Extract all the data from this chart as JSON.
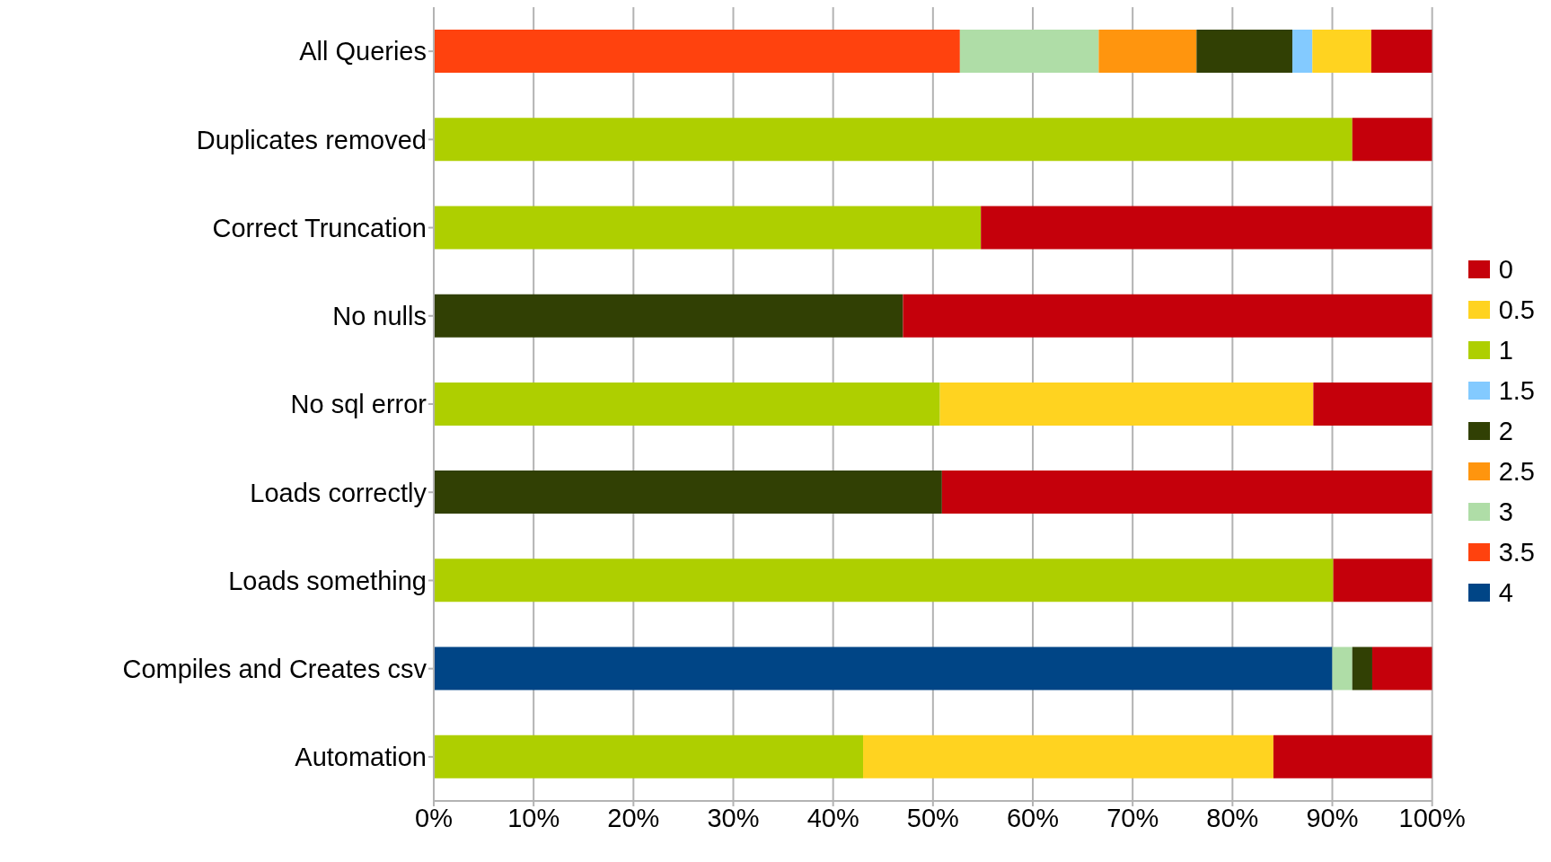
{
  "chart_data": {
    "type": "bar",
    "orientation": "horizontal",
    "stacked": true,
    "grid": "x",
    "legend": "right",
    "categories": [
      "All Queries",
      "Duplicates removed",
      "Correct Truncation",
      "No nulls",
      "No sql error",
      "Loads correctly",
      "Loads something",
      "Compiles and Creates csv",
      "Automation"
    ],
    "xlim": [
      0,
      100
    ],
    "xticks": [
      {
        "value": 0,
        "label": "0%"
      },
      {
        "value": 10,
        "label": "10%"
      },
      {
        "value": 20,
        "label": "20%"
      },
      {
        "value": 30,
        "label": "30%"
      },
      {
        "value": 40,
        "label": "40%"
      },
      {
        "value": 50,
        "label": "50%"
      },
      {
        "value": 60,
        "label": "60%"
      },
      {
        "value": 70,
        "label": "70%"
      },
      {
        "value": 80,
        "label": "80%"
      },
      {
        "value": 90,
        "label": "90%"
      },
      {
        "value": 100,
        "label": "100%"
      }
    ],
    "series": [
      {
        "name": "4",
        "color": "#004586",
        "values": [
          null,
          null,
          null,
          null,
          null,
          null,
          null,
          90.0,
          null
        ]
      },
      {
        "name": "3.5",
        "color": "#ff420e",
        "values": [
          52.7,
          null,
          null,
          null,
          null,
          null,
          null,
          null,
          null
        ]
      },
      {
        "name": "3",
        "color": "#afdda7",
        "values": [
          13.9,
          null,
          null,
          null,
          null,
          null,
          null,
          2.0,
          null
        ]
      },
      {
        "name": "2.5",
        "color": "#ff950e",
        "values": [
          9.8,
          null,
          null,
          null,
          null,
          null,
          null,
          null,
          null
        ]
      },
      {
        "name": "2",
        "color": "#314004",
        "values": [
          9.6,
          null,
          null,
          47.0,
          null,
          50.9,
          null,
          2.0,
          null
        ]
      },
      {
        "name": "1.5",
        "color": "#83caff",
        "values": [
          2.0,
          null,
          null,
          null,
          null,
          null,
          null,
          null,
          null
        ]
      },
      {
        "name": "1",
        "color": "#aecf00",
        "values": [
          null,
          92.0,
          54.8,
          null,
          50.7,
          null,
          90.1,
          null,
          43.0
        ]
      },
      {
        "name": "0.5",
        "color": "#ffd320",
        "values": [
          5.9,
          null,
          null,
          null,
          37.4,
          null,
          null,
          null,
          41.1
        ]
      },
      {
        "name": "0",
        "color": "#c5000b",
        "values": [
          6.1,
          8.0,
          45.2,
          53.0,
          11.9,
          49.1,
          9.9,
          6.0,
          15.9
        ]
      }
    ]
  }
}
